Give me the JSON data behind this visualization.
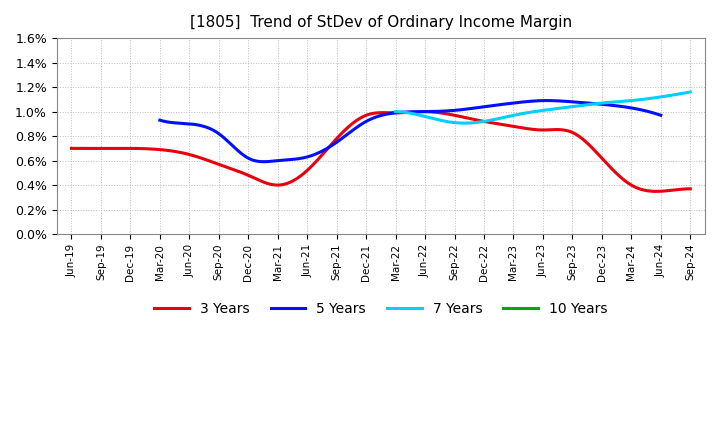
{
  "title": "[1805]  Trend of StDev of Ordinary Income Margin",
  "title_fontsize": 11,
  "background_color": "#ffffff",
  "plot_bg_color": "#ffffff",
  "grid_color": "#aaaaaa",
  "ylim": [
    0.0,
    0.016
  ],
  "yticks": [
    0.0,
    0.002,
    0.004,
    0.006,
    0.008,
    0.01,
    0.012,
    0.014,
    0.016
  ],
  "ytick_labels": [
    "0.0%",
    "0.2%",
    "0.4%",
    "0.6%",
    "0.8%",
    "1.0%",
    "1.2%",
    "1.4%",
    "1.6%"
  ],
  "x_labels": [
    "Jun-19",
    "Sep-19",
    "Dec-19",
    "Mar-20",
    "Jun-20",
    "Sep-20",
    "Dec-20",
    "Mar-21",
    "Jun-21",
    "Sep-21",
    "Dec-21",
    "Mar-22",
    "Jun-22",
    "Sep-22",
    "Dec-22",
    "Mar-23",
    "Jun-23",
    "Sep-23",
    "Dec-23",
    "Mar-24",
    "Jun-24",
    "Sep-24"
  ],
  "series": {
    "3 Years": {
      "color": "#e8000d",
      "linewidth": 2.2,
      "values": [
        0.007,
        0.007,
        0.007,
        0.0069,
        0.0065,
        0.0057,
        0.0048,
        0.004,
        0.0052,
        0.0078,
        0.0097,
        0.0099,
        0.01,
        0.0097,
        0.0092,
        0.0088,
        0.0085,
        0.0083,
        0.0062,
        0.004,
        0.0035,
        0.0037
      ]
    },
    "5 Years": {
      "color": "#0010ff",
      "linewidth": 2.2,
      "values": [
        null,
        null,
        null,
        0.0093,
        0.009,
        0.0082,
        0.0062,
        0.006,
        0.0063,
        0.0075,
        0.0092,
        0.0099,
        0.01,
        0.0101,
        0.0104,
        0.0107,
        0.0109,
        0.0108,
        0.0106,
        0.0103,
        0.0097,
        null
      ]
    },
    "7 Years": {
      "color": "#00d0ff",
      "linewidth": 2.2,
      "values": [
        null,
        null,
        null,
        null,
        null,
        null,
        null,
        null,
        null,
        null,
        null,
        0.01,
        0.0096,
        0.0091,
        0.0092,
        0.0097,
        0.0101,
        0.0104,
        0.0107,
        0.0109,
        0.0112,
        0.0116
      ]
    },
    "10 Years": {
      "color": "#00aa00",
      "linewidth": 2.2,
      "values": [
        null,
        null,
        null,
        null,
        null,
        null,
        null,
        null,
        null,
        null,
        null,
        null,
        null,
        null,
        null,
        null,
        null,
        null,
        null,
        null,
        null,
        null
      ]
    }
  },
  "legend_labels": [
    "3 Years",
    "5 Years",
    "7 Years",
    "10 Years"
  ],
  "legend_colors": [
    "#e8000d",
    "#0010ff",
    "#00d0ff",
    "#00aa00"
  ],
  "legend_fontsize": 10
}
